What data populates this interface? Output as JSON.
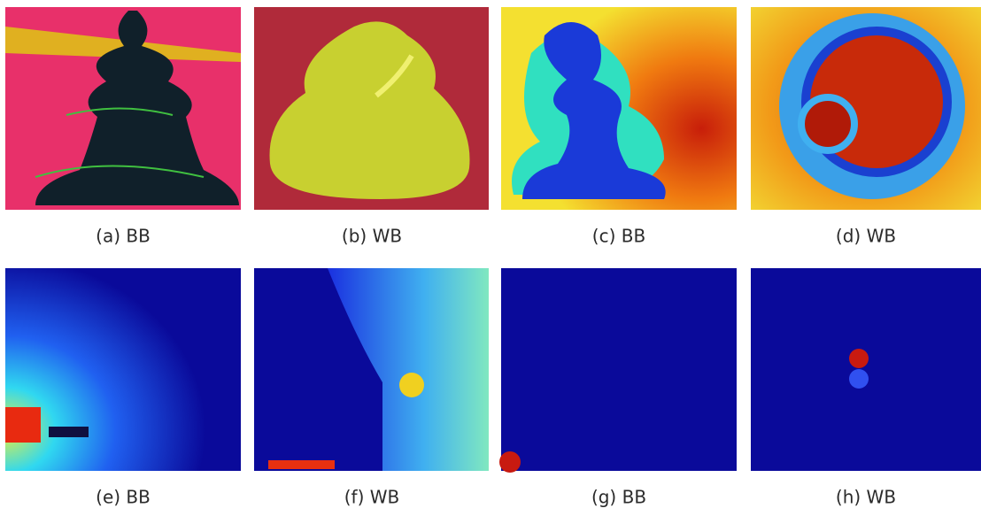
{
  "panels": [
    {
      "caption": "(a) BB"
    },
    {
      "caption": "(b) WB"
    },
    {
      "caption": "(c) BB"
    },
    {
      "caption": "(d) WB"
    },
    {
      "caption": "(e) BB"
    },
    {
      "caption": "(f) WB"
    },
    {
      "caption": "(g) BB"
    },
    {
      "caption": "(h) WB"
    }
  ]
}
